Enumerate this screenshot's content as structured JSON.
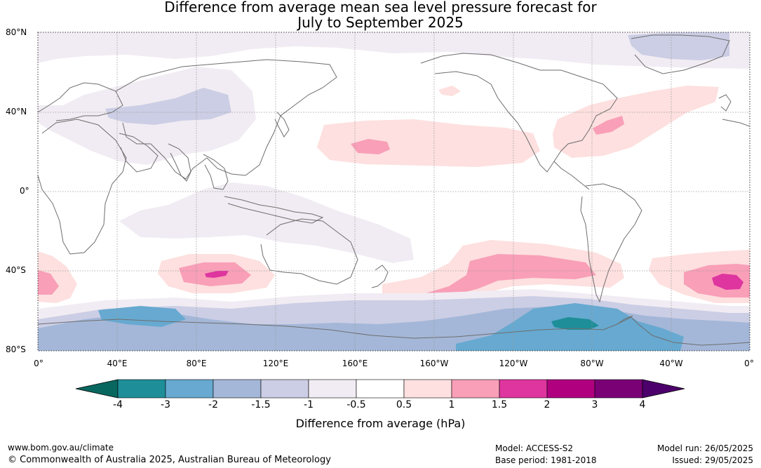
{
  "title_line1": "Difference from average mean sea level pressure forecast for",
  "title_line2": "July to September 2025",
  "lat_labels": [
    "80°N",
    "40°N",
    "0°",
    "40°S",
    "80°S"
  ],
  "lon_labels": [
    "0°",
    "40°E",
    "80°E",
    "120°E",
    "160°E",
    "160°W",
    "120°W",
    "80°W",
    "40°W",
    "0°"
  ],
  "colorbar": {
    "title": "Difference from average (hPa)",
    "tick_labels": [
      "-4",
      "-3",
      "-2",
      "-1.5",
      "-1",
      "-0.5",
      "0.5",
      "1",
      "1.5",
      "2",
      "3",
      "4"
    ],
    "colors": [
      "#08675f",
      "#1e8e98",
      "#67a9d0",
      "#a4b7d8",
      "#ccceE5",
      "#f1ecf3",
      "#ffffff",
      "#fde0df",
      "#f99fb8",
      "#de359f",
      "#b1007f",
      "#7a0076",
      "#4c006b"
    ]
  },
  "footer": {
    "url": "www.bom.gov.au/climate",
    "copyright": "© Commonwealth of Australia 2025, Australian Bureau of Meteorology",
    "model": "Model: ACCESS-S2",
    "base_period": "Base period: 1981-2018",
    "model_run": "Model run: 26/05/2025",
    "issued": "Issued: 29/05/2025"
  }
}
